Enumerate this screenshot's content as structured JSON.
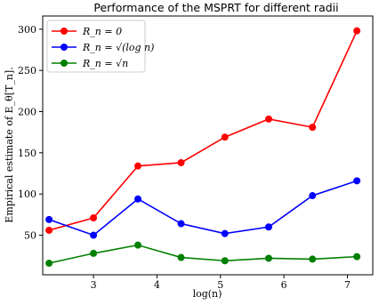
{
  "chart_data": {
    "type": "line",
    "title": "Performance of the MSPRT for different radii",
    "xlabel": "log(n)",
    "ylabel": "Empirical estimate of E_θ[T_n].",
    "xlim": [
      2.2,
      7.4
    ],
    "ylim": [
      2,
      316
    ],
    "xticks": [
      3,
      4,
      5,
      6,
      7
    ],
    "yticks": [
      50,
      100,
      150,
      200,
      250,
      300
    ],
    "grid": false,
    "legend_position": "top-left",
    "x": [
      2.3,
      3.0,
      3.7,
      4.38,
      5.07,
      5.76,
      6.45,
      7.15
    ],
    "series": [
      {
        "name": "R_n = 0",
        "color": "#ff0000",
        "values": [
          56,
          71,
          134,
          138,
          169,
          191,
          181,
          298
        ]
      },
      {
        "name": "R_n = √(log n)",
        "color": "#0000ff",
        "values": [
          69,
          50,
          94,
          64,
          52,
          60,
          98,
          116
        ]
      },
      {
        "name": "R_n = √n",
        "color": "#008000",
        "values": [
          16,
          28,
          38,
          23,
          19,
          22,
          21,
          24
        ]
      }
    ]
  }
}
